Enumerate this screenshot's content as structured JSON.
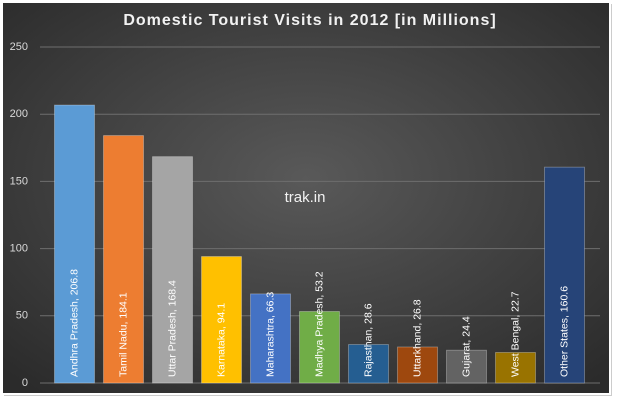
{
  "chart_data": {
    "type": "bar",
    "title": "Domestic Tourist Visits in 2012 [in Millions]",
    "watermark": "trak.in",
    "values": [
      206.8,
      184.1,
      168.4,
      94.1,
      66.3,
      53.2,
      28.6,
      26.8,
      24.4,
      22.7,
      160.6
    ],
    "value_labels": [
      "Andhra Pradesh, 206.8",
      "Tamil Nadu, 184.1",
      "Uttar Pradesh, 168.4",
      "Karnataka, 94.1",
      "Maharashtra, 66.3",
      "Madhya Pradesh, 53.2",
      "Rajasthan, 28.6",
      "Uttarkhand, 26.8",
      "Gujarat, 24.4",
      "West Bengal, 22.7",
      "Other States, 160.6"
    ],
    "colors": [
      "#5b9bd5",
      "#ed7d31",
      "#a5a5a5",
      "#ffc000",
      "#4472c4",
      "#70ad47",
      "#255e91",
      "#9e480e",
      "#636363",
      "#997300",
      "#264478"
    ],
    "ylim": [
      0,
      250
    ],
    "yticks": [
      0,
      50,
      100,
      150,
      200,
      250
    ],
    "grid": true
  }
}
